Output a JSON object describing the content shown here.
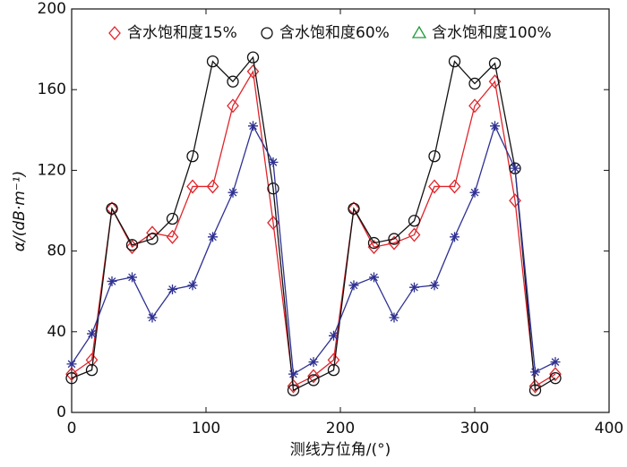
{
  "chart_data": {
    "type": "line",
    "x_label": "测线方位角/(°)",
    "y_label": "α/(dB·m⁻¹)",
    "x": [
      0,
      15,
      30,
      45,
      60,
      75,
      90,
      105,
      120,
      135,
      150,
      165,
      180,
      195,
      210,
      225,
      240,
      255,
      270,
      285,
      300,
      315,
      330,
      345,
      360
    ],
    "series": [
      {
        "name": "含水饱和度15%",
        "color": "#e0252b",
        "marker": "diamond",
        "values": [
          19,
          26,
          101,
          82,
          89,
          87,
          112,
          112,
          152,
          169,
          94,
          13,
          18,
          26,
          101,
          82,
          84,
          88,
          112,
          112,
          152,
          164,
          105,
          13,
          19
        ]
      },
      {
        "name": "含水饱和度60%",
        "color": "#111111",
        "marker": "circle",
        "values": [
          17,
          21,
          101,
          83,
          86,
          96,
          127,
          174,
          164,
          176,
          111,
          11,
          16,
          21,
          101,
          84,
          86,
          95,
          127,
          174,
          163,
          173,
          121,
          11,
          17
        ]
      },
      {
        "name": "含水饱和度100%",
        "color": "#2e3192",
        "marker": "asterisk",
        "legend_color": "#1f9a3a",
        "legend_marker": "triangle",
        "values": [
          24,
          39,
          65,
          67,
          47,
          61,
          63,
          87,
          109,
          142,
          124,
          19,
          25,
          38,
          63,
          67,
          47,
          62,
          63,
          87,
          109,
          142,
          121,
          20,
          25
        ]
      }
    ],
    "xlim": [
      0,
      400
    ],
    "xticks": [
      0,
      100,
      200,
      300,
      400
    ],
    "ylim": [
      0,
      200
    ],
    "yticks": [
      0,
      40,
      80,
      120,
      160,
      200
    ],
    "legend": "top"
  }
}
